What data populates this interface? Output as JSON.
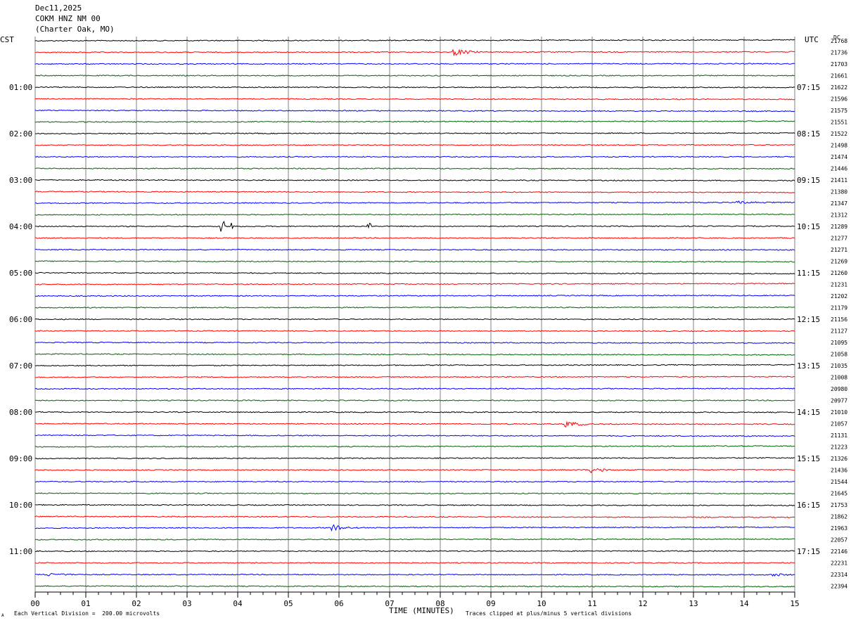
{
  "header": {
    "date": "Dec11,2025",
    "station": "COKM HNZ NM 00",
    "location": "(Charter Oak, MO)"
  },
  "left_tz": "CST",
  "right_tz": "UTC",
  "dc_label": "DC",
  "footer": {
    "x_axis_label": "TIME (MINUTES)",
    "scale_note": "Each Vertical Division =  200.00 microvolts",
    "clip_note": "Traces clipped at plus/minus 5 vertical divisions",
    "corner_mark": "A"
  },
  "colors": {
    "trace_cycle": [
      "#000000",
      "#ff0000",
      "#0000ff",
      "#006400"
    ],
    "grid": "#808080"
  },
  "chart_data": {
    "type": "line",
    "title": "Dec11,2025 COKM HNZ NM 00 (Charter Oak, MO)",
    "xlabel": "TIME (MINUTES)",
    "xlim": [
      0,
      15
    ],
    "x_ticks": [
      "00",
      "01",
      "02",
      "03",
      "04",
      "05",
      "06",
      "07",
      "08",
      "09",
      "10",
      "11",
      "12",
      "13",
      "14",
      "15"
    ],
    "left_hour_labels": [
      "01:00",
      "02:00",
      "03:00",
      "04:00",
      "05:00",
      "06:00",
      "07:00",
      "08:00",
      "09:00",
      "10:00",
      "11:00"
    ],
    "right_hour_labels": [
      "07:15",
      "08:15",
      "09:15",
      "10:15",
      "11:15",
      "12:15",
      "13:15",
      "14:15",
      "15:15",
      "16:15",
      "17:15"
    ],
    "dc_offsets": [
      21768,
      21736,
      21703,
      21661,
      21622,
      21596,
      21575,
      21551,
      21522,
      21498,
      21474,
      21446,
      21411,
      21380,
      21347,
      21312,
      21289,
      21277,
      21271,
      21269,
      21260,
      21231,
      21202,
      21179,
      21156,
      21127,
      21095,
      21058,
      21035,
      21008,
      20980,
      20977,
      21010,
      21057,
      21131,
      21223,
      21326,
      21436,
      21544,
      21645,
      21753,
      21862,
      21963,
      22057,
      22146,
      22231,
      22314,
      22394
    ],
    "events": [
      {
        "trace": 1,
        "minute": 8.3,
        "amplitude": "medium"
      },
      {
        "trace": 14,
        "minute": 13.9,
        "amplitude": "small"
      },
      {
        "trace": 16,
        "minute": 3.7,
        "amplitude": "spike"
      },
      {
        "trace": 16,
        "minute": 3.9,
        "amplitude": "spike"
      },
      {
        "trace": 16,
        "minute": 6.6,
        "amplitude": "spike"
      },
      {
        "trace": 33,
        "minute": 10.5,
        "amplitude": "medium"
      },
      {
        "trace": 37,
        "minute": 11.0,
        "amplitude": "medium"
      },
      {
        "trace": 42,
        "minute": 5.9,
        "amplitude": "medium"
      },
      {
        "trace": 46,
        "minute": 0.3,
        "amplitude": "small"
      },
      {
        "trace": 46,
        "minute": 14.6,
        "amplitude": "small"
      }
    ]
  }
}
